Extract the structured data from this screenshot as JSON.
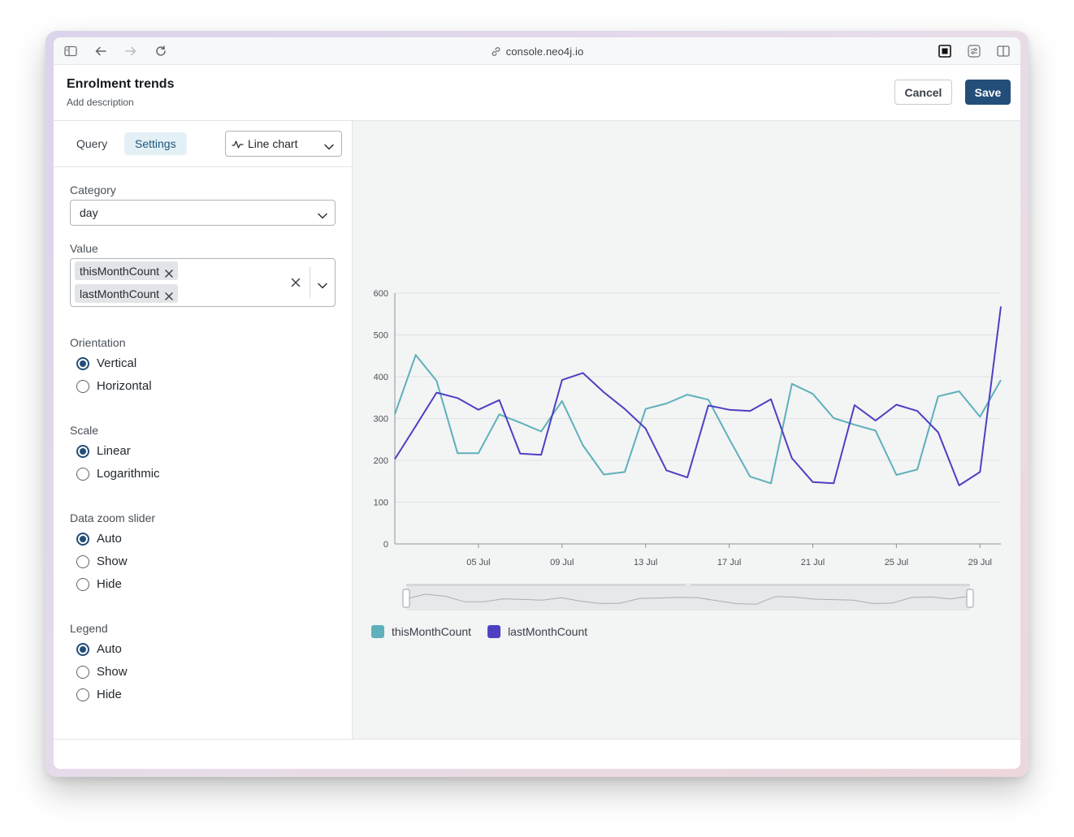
{
  "browser": {
    "url": "console.neo4j.io",
    "icons": [
      "sidebar-toggle-icon",
      "back-arrow-icon",
      "forward-arrow-icon",
      "reload-icon",
      "link-icon",
      "frame-icon",
      "sliders-icon",
      "split-view-icon"
    ]
  },
  "header": {
    "title": "Enrolment trends",
    "description": "Add description",
    "cancel_label": "Cancel",
    "save_label": "Save"
  },
  "tabs": [
    {
      "label": "Query",
      "active": false
    },
    {
      "label": "Settings",
      "active": true
    }
  ],
  "chart_type_select": {
    "value": "Line chart",
    "icon": "line-chart-icon"
  },
  "settings": {
    "category": {
      "label": "Category",
      "value": "day"
    },
    "value": {
      "label": "Value",
      "selected": [
        "thisMonthCount",
        "lastMonthCount"
      ]
    },
    "orientation": {
      "label": "Orientation",
      "options": [
        "Vertical",
        "Horizontal"
      ],
      "selected": "Vertical"
    },
    "scale": {
      "label": "Scale",
      "options": [
        "Linear",
        "Logarithmic"
      ],
      "selected": "Linear"
    },
    "zoom": {
      "label": "Data zoom slider",
      "options": [
        "Auto",
        "Show",
        "Hide"
      ],
      "selected": "Auto"
    },
    "legend": {
      "label": "Legend",
      "options": [
        "Auto",
        "Show",
        "Hide"
      ],
      "selected": "Auto"
    }
  },
  "colors": {
    "accent": "#234e79",
    "thisMonthCount": "#5eb0bb",
    "lastMonthCount": "#4d40c2"
  },
  "chart_data": {
    "type": "line",
    "x_start": "01 Jul",
    "x_tick_labels": [
      "05 Jul",
      "09 Jul",
      "13 Jul",
      "17 Jul",
      "21 Jul",
      "25 Jul",
      "29 Jul"
    ],
    "x_tick_days": [
      5,
      9,
      13,
      17,
      21,
      25,
      29
    ],
    "xlim": [
      1,
      30
    ],
    "ylim": [
      0,
      600
    ],
    "y_ticks": [
      0,
      100,
      200,
      300,
      400,
      500,
      600
    ],
    "grid": true,
    "legend": "bottom-left",
    "data_zoom_slider": true,
    "series": [
      {
        "name": "thisMonthCount",
        "values": [
          310,
          452,
          390,
          217,
          217,
          310,
          290,
          269,
          342,
          236,
          166,
          172,
          323,
          336,
          357,
          345,
          251,
          161,
          145,
          383,
          359,
          301,
          285,
          271,
          165,
          178,
          353,
          365,
          304,
          392
        ]
      },
      {
        "name": "lastMonthCount",
        "values": [
          203,
          282,
          362,
          349,
          321,
          344,
          216,
          213,
          392,
          409,
          363,
          323,
          276,
          176,
          159,
          331,
          321,
          318,
          346,
          205,
          148,
          145,
          332,
          295,
          333,
          318,
          267,
          140,
          172,
          568
        ]
      }
    ]
  }
}
